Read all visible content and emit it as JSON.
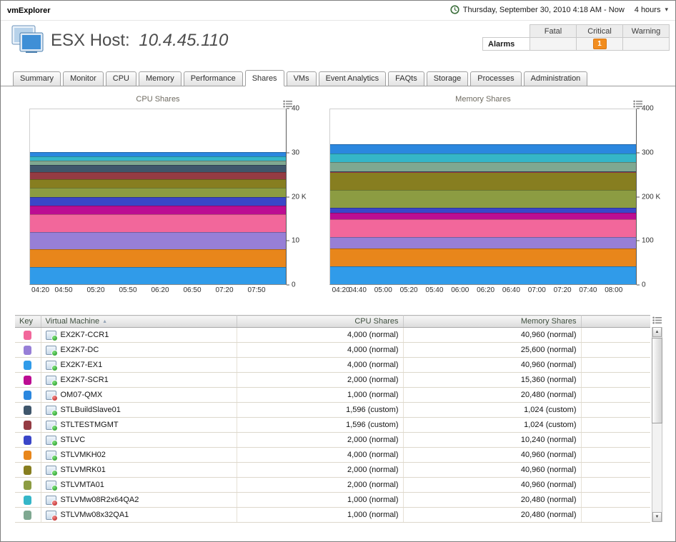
{
  "topbar": {
    "brand": "vmExplorer",
    "time_label": "Thursday, September 30, 2010 4:18 AM - Now",
    "duration": "4 hours"
  },
  "header": {
    "title_prefix": "ESX Host:",
    "host_ip": "10.4.45.110"
  },
  "alarms": {
    "label": "Alarms",
    "columns": [
      "Fatal",
      "Critical",
      "Warning"
    ],
    "fatal_count": "",
    "critical_count": "1",
    "warning_count": "",
    "critical_badge_color": "#F28D1F"
  },
  "tabs": {
    "items": [
      "Summary",
      "Monitor",
      "CPU",
      "Memory",
      "Performance",
      "Shares",
      "VMs",
      "Event Analytics",
      "FAQts",
      "Storage",
      "Processes",
      "Administration"
    ],
    "active": "Shares"
  },
  "table": {
    "columns": [
      "Key",
      "Virtual Machine",
      "CPU Shares",
      "Memory Shares"
    ],
    "sort": {
      "column": "Virtual Machine",
      "direction": "asc"
    }
  },
  "vms": [
    {
      "name": "EX2K7-CCR1",
      "color": "#F2679B",
      "power": "on",
      "cpu": 4000,
      "cpu_display": "4,000 (normal)",
      "mem": 40960,
      "mem_display": "40,960 (normal)"
    },
    {
      "name": "EX2K7-DC",
      "color": "#977FD7",
      "power": "on",
      "cpu": 4000,
      "cpu_display": "4,000 (normal)",
      "mem": 25600,
      "mem_display": "25,600 (normal)"
    },
    {
      "name": "EX2K7-EX1",
      "color": "#309BE9",
      "power": "on",
      "cpu": 4000,
      "cpu_display": "4,000 (normal)",
      "mem": 40960,
      "mem_display": "40,960 (normal)"
    },
    {
      "name": "EX2K7-SCR1",
      "color": "#BC0D92",
      "power": "on",
      "cpu": 2000,
      "cpu_display": "2,000 (normal)",
      "mem": 15360,
      "mem_display": "15,360 (normal)"
    },
    {
      "name": "OM07-QMX",
      "color": "#2B87DF",
      "power": "off",
      "cpu": 1000,
      "cpu_display": "1,000 (normal)",
      "mem": 20480,
      "mem_display": "20,480 (normal)"
    },
    {
      "name": "STLBuildSlave01",
      "color": "#3F566B",
      "power": "on",
      "cpu": 1596,
      "cpu_display": "1,596 (custom)",
      "mem": 1024,
      "mem_display": "1,024 (custom)"
    },
    {
      "name": "STLTESTMGMT",
      "color": "#943B43",
      "power": "on",
      "cpu": 1596,
      "cpu_display": "1,596 (custom)",
      "mem": 1024,
      "mem_display": "1,024 (custom)"
    },
    {
      "name": "STLVC",
      "color": "#3A46C8",
      "power": "on",
      "cpu": 2000,
      "cpu_display": "2,000 (normal)",
      "mem": 10240,
      "mem_display": "10,240 (normal)"
    },
    {
      "name": "STLVMKH02",
      "color": "#E8861B",
      "power": "on",
      "cpu": 4000,
      "cpu_display": "4,000 (normal)",
      "mem": 40960,
      "mem_display": "40,960 (normal)"
    },
    {
      "name": "STLVMRK01",
      "color": "#877E20",
      "power": "on",
      "cpu": 2000,
      "cpu_display": "2,000 (normal)",
      "mem": 40960,
      "mem_display": "40,960 (normal)"
    },
    {
      "name": "STLVMTA01",
      "color": "#8C9C42",
      "power": "on",
      "cpu": 2000,
      "cpu_display": "2,000 (normal)",
      "mem": 40960,
      "mem_display": "40,960 (normal)"
    },
    {
      "name": "STLVMw08R2x64QA2",
      "color": "#35B6C8",
      "power": "off",
      "cpu": 1000,
      "cpu_display": "1,000 (normal)",
      "mem": 20480,
      "mem_display": "20,480 (normal)"
    },
    {
      "name": "STLVMw08x32QA1",
      "color": "#7FA891",
      "power": "off",
      "cpu": 1000,
      "cpu_display": "1,000 (normal)",
      "mem": 20480,
      "mem_display": "20,480 (normal)"
    }
  ],
  "chart_data": [
    {
      "id": "cpu",
      "type": "area",
      "stacked": true,
      "title": "CPU Shares",
      "ylim": [
        0,
        40000
      ],
      "yticks": [
        "40",
        "30",
        "20 K",
        "10",
        "0"
      ],
      "xticks": [
        "04:20",
        "04:50",
        "05:20",
        "05:50",
        "06:20",
        "06:50",
        "07:20",
        "07:50"
      ],
      "x_window": {
        "start_min": 258,
        "span_min": 240
      },
      "series_bottom_up": [
        {
          "name": "EX2K7-EX1",
          "value": 4000
        },
        {
          "name": "STLVMKH02",
          "value": 4000
        },
        {
          "name": "EX2K7-DC",
          "value": 4000
        },
        {
          "name": "EX2K7-CCR1",
          "value": 4000
        },
        {
          "name": "EX2K7-SCR1",
          "value": 2000
        },
        {
          "name": "STLVC",
          "value": 2000
        },
        {
          "name": "STLVMTA01",
          "value": 2000
        },
        {
          "name": "STLVMRK01",
          "value": 2000
        },
        {
          "name": "STLTESTMGMT",
          "value": 1596
        },
        {
          "name": "STLBuildSlave01",
          "value": 1596
        },
        {
          "name": "STLVMw08x32QA1",
          "value": 1000
        },
        {
          "name": "STLVMw08R2x64QA2",
          "value": 1000
        },
        {
          "name": "OM07-QMX",
          "value": 1000
        }
      ]
    },
    {
      "id": "mem",
      "type": "area",
      "stacked": true,
      "title": "Memory Shares",
      "ylim": [
        0,
        400000
      ],
      "yticks": [
        "400",
        "300",
        "200 K",
        "100",
        "0"
      ],
      "xticks": [
        "04:20",
        "04:40",
        "05:00",
        "05:20",
        "05:40",
        "06:00",
        "06:20",
        "06:40",
        "07:00",
        "07:20",
        "07:40",
        "08:00"
      ],
      "x_window": {
        "start_min": 258,
        "span_min": 240
      },
      "series_bottom_up": [
        {
          "name": "EX2K7-EX1",
          "value": 40960
        },
        {
          "name": "STLVMKH02",
          "value": 40960
        },
        {
          "name": "EX2K7-DC",
          "value": 25600
        },
        {
          "name": "EX2K7-CCR1",
          "value": 40960
        },
        {
          "name": "EX2K7-SCR1",
          "value": 15360
        },
        {
          "name": "STLVC",
          "value": 10240
        },
        {
          "name": "STLVMTA01",
          "value": 40960
        },
        {
          "name": "STLVMRK01",
          "value": 40960
        },
        {
          "name": "STLTESTMGMT",
          "value": 1024
        },
        {
          "name": "STLBuildSlave01",
          "value": 1024
        },
        {
          "name": "STLVMw08x32QA1",
          "value": 20480
        },
        {
          "name": "STLVMw08R2x64QA2",
          "value": 20480
        },
        {
          "name": "OM07-QMX",
          "value": 20480
        }
      ]
    }
  ]
}
